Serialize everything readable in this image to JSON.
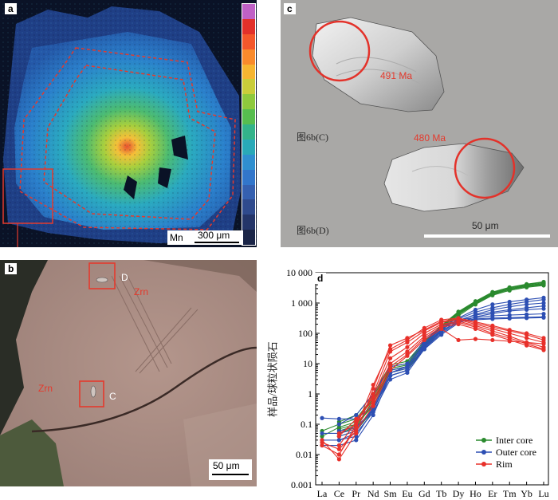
{
  "panel_a": {
    "label": "a",
    "element_label": "Mn",
    "scale_label": "300 μm",
    "colorbar": [
      "#c061c6",
      "#e2302a",
      "#f4572b",
      "#f98a2c",
      "#f6b531",
      "#c9cd3a",
      "#8ec93d",
      "#57bd4f",
      "#33b38a",
      "#29a9b8",
      "#2f8fd0",
      "#3276cb",
      "#3560b0",
      "#2f4a8d",
      "#243569",
      "#1a2547"
    ]
  },
  "panel_b": {
    "label": "b",
    "spot_d": "D",
    "spot_c": "C",
    "zircon_1": "Zrn",
    "zircon_2": "Zrn",
    "scale_label": "50 μm"
  },
  "panel_c": {
    "label": "c",
    "age_1": "491 Ma",
    "age_2": "480 Ma",
    "caption_1": "图6b(C)",
    "caption_2": "图6b(D)",
    "scale_label": "50 μm"
  },
  "chart_data": {
    "type": "line",
    "title": "",
    "label": "d",
    "ylabel": "样品/球粒状陨石",
    "xlabel": "",
    "categories": [
      "La",
      "Ce",
      "Pr",
      "Nd",
      "Sm",
      "Eu",
      "Gd",
      "Tb",
      "Dy",
      "Ho",
      "Er",
      "Tm",
      "Yb",
      "Lu"
    ],
    "ylim": [
      0.001,
      10000
    ],
    "y_scale": "log",
    "y_tick_labels": [
      "10 000",
      "1 000",
      "100",
      "10",
      "1",
      "0.1",
      "0.01",
      "0.001"
    ],
    "legend_position": "bottom-right",
    "series": [
      {
        "name": "Inter core",
        "color": "#2a8a2e",
        "lines": [
          [
            null,
            0.05,
            0.08,
            0.5,
            6,
            8,
            40,
            150,
            450,
            1000,
            2000,
            3000,
            3800,
            4500
          ],
          [
            null,
            0.07,
            0.1,
            0.4,
            5,
            7,
            35,
            130,
            420,
            950,
            1900,
            2800,
            3500,
            4000
          ],
          [
            0.06,
            0.1,
            0.15,
            0.8,
            8,
            10,
            50,
            170,
            500,
            1100,
            2200,
            3200,
            4000,
            4800
          ],
          [
            null,
            0.04,
            0.06,
            0.3,
            4,
            6,
            30,
            120,
            380,
            900,
            1800,
            2600,
            3300,
            3800
          ],
          [
            null,
            0.12,
            0.2,
            1.0,
            9,
            12,
            55,
            180,
            520,
            1150,
            2300,
            3300,
            4200,
            5000
          ],
          [
            null,
            0.06,
            0.09,
            0.6,
            7,
            9,
            45,
            160,
            470,
            1050,
            2100,
            3000,
            3700,
            4300
          ],
          [
            0.04,
            0.08,
            0.12,
            0.7,
            6,
            8,
            42,
            155,
            460,
            1000,
            2050,
            2950,
            3600,
            4200
          ]
        ]
      },
      {
        "name": "Outer core",
        "color": "#2d4fb3",
        "lines": [
          [
            0.16,
            0.15,
            0.15,
            0.4,
            5,
            8,
            40,
            130,
            300,
            500,
            700,
            900,
            1100,
            1300
          ],
          [
            null,
            0.06,
            0.08,
            0.3,
            4,
            6,
            35,
            110,
            260,
            420,
            600,
            750,
            900,
            1000
          ],
          [
            0.03,
            0.03,
            0.05,
            0.25,
            3,
            5,
            30,
            90,
            220,
            350,
            450,
            550,
            600,
            650
          ],
          [
            0.02,
            0.02,
            0.03,
            0.2,
            4,
            6,
            38,
            120,
            250,
            300,
            320,
            330,
            340,
            350
          ],
          [
            null,
            0.04,
            0.06,
            0.35,
            6,
            8,
            50,
            150,
            280,
            330,
            380,
            400,
            420,
            440
          ],
          [
            null,
            0.1,
            0.2,
            1.0,
            8,
            10,
            60,
            160,
            320,
            600,
            900,
            1100,
            1300,
            1500
          ],
          [
            0.05,
            0.05,
            0.07,
            0.3,
            5,
            7,
            45,
            140,
            270,
            400,
            500,
            600,
            700,
            800
          ],
          [
            null,
            0.03,
            0.04,
            0.3,
            4,
            6,
            32,
            100,
            240,
            280,
            300,
            310,
            320,
            330
          ]
        ]
      },
      {
        "name": "Rim",
        "color": "#e8302a",
        "lines": [
          [
            0.03,
            0.007,
            0.05,
            1.5,
            40,
            70,
            130,
            250,
            300,
            220,
            160,
            120,
            90,
            60
          ],
          [
            null,
            0.01,
            0.08,
            2.0,
            30,
            60,
            150,
            280,
            320,
            240,
            180,
            130,
            100,
            70
          ],
          [
            0.02,
            0.01,
            0.1,
            1.0,
            25,
            50,
            120,
            230,
            280,
            200,
            140,
            100,
            70,
            50
          ],
          [
            null,
            0.02,
            0.12,
            0.8,
            15,
            35,
            100,
            200,
            250,
            180,
            120,
            80,
            50,
            35
          ],
          [
            null,
            0.04,
            0.15,
            0.6,
            10,
            25,
            80,
            180,
            230,
            160,
            100,
            70,
            45,
            30
          ],
          [
            null,
            0.05,
            0.1,
            0.5,
            8,
            20,
            70,
            160,
            200,
            140,
            90,
            60,
            40,
            28
          ],
          [
            0.025,
            0.015,
            0.06,
            0.4,
            6,
            18,
            60,
            140,
            60,
            65,
            60,
            55,
            50,
            45
          ]
        ]
      }
    ]
  }
}
